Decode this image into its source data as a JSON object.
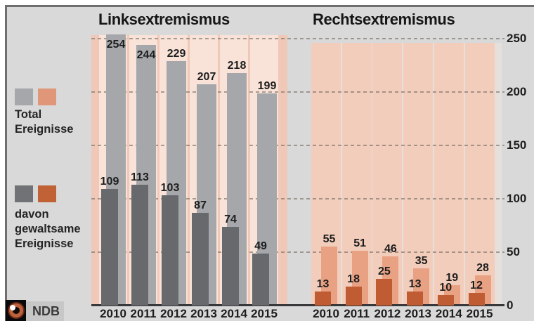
{
  "legend": {
    "total_label": "Total\nEreignisse",
    "violent_label": "davon\ngewaltsame\nEreignisse"
  },
  "source": {
    "name": "NDB"
  },
  "axis": {
    "tick_labels": [
      "250",
      "200",
      "150",
      "100",
      "50",
      "0"
    ]
  },
  "colors": {
    "page_background": "#d9d9d9",
    "total_gray": "#a6a7ab",
    "violent_gray": "#67696c",
    "total_salmon": "#e9a183",
    "violent_orange": "#bf5c33",
    "left_panel_base": "#f0c8b7",
    "left_panel_band": "#f9e3d9",
    "right_panel_base": "#e6e0dc",
    "right_panel_band": "#f3cdbb"
  },
  "chart_data": [
    {
      "type": "bar",
      "title": "Linksextremismus",
      "categories": [
        "2010",
        "2011",
        "2012",
        "2013",
        "2014",
        "2015"
      ],
      "series": [
        {
          "name": "Total Ereignisse",
          "color": "#a6a7ab",
          "values": [
            254,
            244,
            229,
            207,
            218,
            199
          ]
        },
        {
          "name": "davon gewaltsame Ereignisse",
          "color": "#67696c",
          "values": [
            109,
            113,
            103,
            87,
            74,
            49
          ]
        }
      ],
      "ylim": [
        0,
        250
      ],
      "grid": true,
      "gridstep": 50,
      "value_labels": true,
      "legend_position": "left"
    },
    {
      "type": "bar",
      "title": "Rechtsextremismus",
      "categories": [
        "2010",
        "2011",
        "2012",
        "2013",
        "2014",
        "2015"
      ],
      "series": [
        {
          "name": "Total Ereignisse",
          "color": "#e9a183",
          "values": [
            55,
            51,
            46,
            35,
            19,
            28
          ]
        },
        {
          "name": "davon gewaltsame Ereignisse",
          "color": "#bf5c33",
          "values": [
            13,
            18,
            25,
            13,
            10,
            12
          ]
        }
      ],
      "ylim": [
        0,
        250
      ],
      "grid": true,
      "gridstep": 50,
      "value_labels": true,
      "legend_position": "left"
    }
  ]
}
